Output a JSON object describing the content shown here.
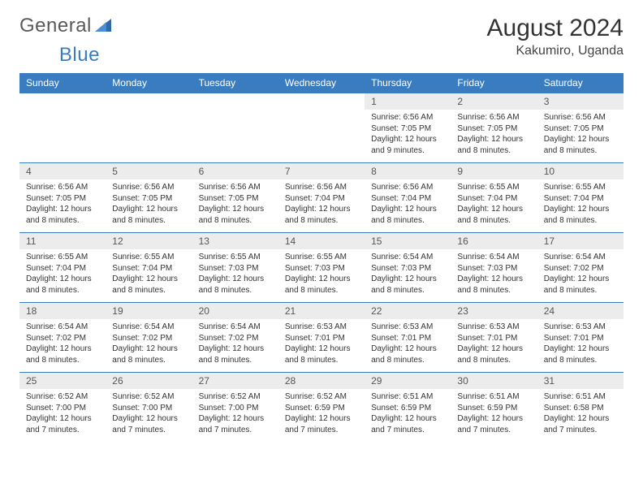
{
  "brand": {
    "word1": "General",
    "word2": "Blue"
  },
  "title": "August 2024",
  "location": "Kakumiro, Uganda",
  "colors": {
    "header_bg": "#3a7cc0",
    "header_text": "#ffffff",
    "daynum_bg": "#ececec",
    "border_top": "#3a7cc0",
    "body_text": "#333333"
  },
  "day_headers": [
    "Sunday",
    "Monday",
    "Tuesday",
    "Wednesday",
    "Thursday",
    "Friday",
    "Saturday"
  ],
  "weeks": [
    [
      null,
      null,
      null,
      null,
      {
        "n": "1",
        "sr": "6:56 AM",
        "ss": "7:05 PM",
        "dl": "12 hours and 9 minutes."
      },
      {
        "n": "2",
        "sr": "6:56 AM",
        "ss": "7:05 PM",
        "dl": "12 hours and 8 minutes."
      },
      {
        "n": "3",
        "sr": "6:56 AM",
        "ss": "7:05 PM",
        "dl": "12 hours and 8 minutes."
      }
    ],
    [
      {
        "n": "4",
        "sr": "6:56 AM",
        "ss": "7:05 PM",
        "dl": "12 hours and 8 minutes."
      },
      {
        "n": "5",
        "sr": "6:56 AM",
        "ss": "7:05 PM",
        "dl": "12 hours and 8 minutes."
      },
      {
        "n": "6",
        "sr": "6:56 AM",
        "ss": "7:05 PM",
        "dl": "12 hours and 8 minutes."
      },
      {
        "n": "7",
        "sr": "6:56 AM",
        "ss": "7:04 PM",
        "dl": "12 hours and 8 minutes."
      },
      {
        "n": "8",
        "sr": "6:56 AM",
        "ss": "7:04 PM",
        "dl": "12 hours and 8 minutes."
      },
      {
        "n": "9",
        "sr": "6:55 AM",
        "ss": "7:04 PM",
        "dl": "12 hours and 8 minutes."
      },
      {
        "n": "10",
        "sr": "6:55 AM",
        "ss": "7:04 PM",
        "dl": "12 hours and 8 minutes."
      }
    ],
    [
      {
        "n": "11",
        "sr": "6:55 AM",
        "ss": "7:04 PM",
        "dl": "12 hours and 8 minutes."
      },
      {
        "n": "12",
        "sr": "6:55 AM",
        "ss": "7:04 PM",
        "dl": "12 hours and 8 minutes."
      },
      {
        "n": "13",
        "sr": "6:55 AM",
        "ss": "7:03 PM",
        "dl": "12 hours and 8 minutes."
      },
      {
        "n": "14",
        "sr": "6:55 AM",
        "ss": "7:03 PM",
        "dl": "12 hours and 8 minutes."
      },
      {
        "n": "15",
        "sr": "6:54 AM",
        "ss": "7:03 PM",
        "dl": "12 hours and 8 minutes."
      },
      {
        "n": "16",
        "sr": "6:54 AM",
        "ss": "7:03 PM",
        "dl": "12 hours and 8 minutes."
      },
      {
        "n": "17",
        "sr": "6:54 AM",
        "ss": "7:02 PM",
        "dl": "12 hours and 8 minutes."
      }
    ],
    [
      {
        "n": "18",
        "sr": "6:54 AM",
        "ss": "7:02 PM",
        "dl": "12 hours and 8 minutes."
      },
      {
        "n": "19",
        "sr": "6:54 AM",
        "ss": "7:02 PM",
        "dl": "12 hours and 8 minutes."
      },
      {
        "n": "20",
        "sr": "6:54 AM",
        "ss": "7:02 PM",
        "dl": "12 hours and 8 minutes."
      },
      {
        "n": "21",
        "sr": "6:53 AM",
        "ss": "7:01 PM",
        "dl": "12 hours and 8 minutes."
      },
      {
        "n": "22",
        "sr": "6:53 AM",
        "ss": "7:01 PM",
        "dl": "12 hours and 8 minutes."
      },
      {
        "n": "23",
        "sr": "6:53 AM",
        "ss": "7:01 PM",
        "dl": "12 hours and 8 minutes."
      },
      {
        "n": "24",
        "sr": "6:53 AM",
        "ss": "7:01 PM",
        "dl": "12 hours and 8 minutes."
      }
    ],
    [
      {
        "n": "25",
        "sr": "6:52 AM",
        "ss": "7:00 PM",
        "dl": "12 hours and 7 minutes."
      },
      {
        "n": "26",
        "sr": "6:52 AM",
        "ss": "7:00 PM",
        "dl": "12 hours and 7 minutes."
      },
      {
        "n": "27",
        "sr": "6:52 AM",
        "ss": "7:00 PM",
        "dl": "12 hours and 7 minutes."
      },
      {
        "n": "28",
        "sr": "6:52 AM",
        "ss": "6:59 PM",
        "dl": "12 hours and 7 minutes."
      },
      {
        "n": "29",
        "sr": "6:51 AM",
        "ss": "6:59 PM",
        "dl": "12 hours and 7 minutes."
      },
      {
        "n": "30",
        "sr": "6:51 AM",
        "ss": "6:59 PM",
        "dl": "12 hours and 7 minutes."
      },
      {
        "n": "31",
        "sr": "6:51 AM",
        "ss": "6:58 PM",
        "dl": "12 hours and 7 minutes."
      }
    ]
  ],
  "labels": {
    "sunrise": "Sunrise: ",
    "sunset": "Sunset: ",
    "daylight": "Daylight: "
  }
}
